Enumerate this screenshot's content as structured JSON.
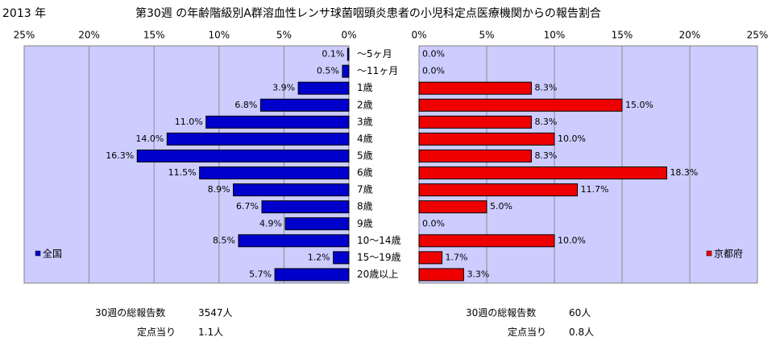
{
  "header": {
    "year": "2013 年",
    "title": "第30週 の年齢階級別A群溶血性レンサ球菌咽頭炎患者の小児科定点医療機関からの報告割合"
  },
  "colors": {
    "plot_bg": "#ccccff",
    "national": "#0000cc",
    "kyoto": "#ee0000",
    "grid": "#8a8a8a"
  },
  "chart_data": {
    "type": "bar",
    "categories": [
      "〜5ヶ月",
      "〜11ヶ月",
      "1歳",
      "2歳",
      "3歳",
      "4歳",
      "5歳",
      "6歳",
      "7歳",
      "8歳",
      "9歳",
      "10〜14歳",
      "15〜19歳",
      "20歳以上"
    ],
    "series": [
      {
        "name": "全国",
        "values": [
          0.1,
          0.5,
          3.9,
          6.8,
          11.0,
          14.0,
          16.3,
          11.5,
          8.9,
          6.7,
          4.9,
          8.5,
          1.2,
          5.7
        ],
        "labels": [
          "0.1%",
          "0.5%",
          "3.9%",
          "6.8%",
          "11.0%",
          "14.0%",
          "16.3%",
          "11.5%",
          "8.9%",
          "6.7%",
          "4.9%",
          "8.5%",
          "1.2%",
          "5.7%"
        ]
      },
      {
        "name": "京都府",
        "values": [
          0.0,
          0.0,
          8.3,
          15.0,
          8.3,
          10.0,
          8.3,
          18.3,
          11.7,
          5.0,
          0.0,
          10.0,
          1.7,
          3.3
        ],
        "labels": [
          "0.0%",
          "0.0%",
          "8.3%",
          "15.0%",
          "8.3%",
          "10.0%",
          "8.3%",
          "18.3%",
          "11.7%",
          "5.0%",
          "0.0%",
          "10.0%",
          "1.7%",
          "3.3%"
        ]
      }
    ],
    "xlim": [
      0,
      25
    ],
    "ticks": [
      0,
      5,
      10,
      15,
      20,
      25
    ],
    "tick_labels": [
      "0%",
      "5%",
      "10%",
      "15%",
      "20%",
      "25%"
    ],
    "grid": true,
    "legend": [
      "bottom-left",
      "bottom-right"
    ]
  },
  "footer": {
    "left": {
      "total_label": "30週の総報告数",
      "total_value": "3547人",
      "per_label": "定点当り",
      "per_value": "1.1人"
    },
    "right": {
      "total_label": "30週の総報告数",
      "total_value": "60人",
      "per_label": "定点当り",
      "per_value": "0.8人"
    }
  }
}
